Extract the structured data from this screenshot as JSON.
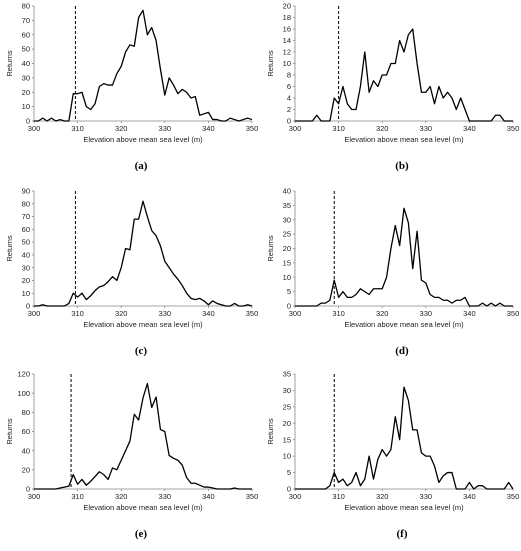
{
  "chart_data": [
    {
      "type": "line",
      "caption": "(a)",
      "xlabel": "Elevation above mean sea level (m)",
      "ylabel": "Returns",
      "xlim": [
        300,
        350
      ],
      "ylim": [
        0,
        80
      ],
      "xticks": [
        300,
        310,
        320,
        330,
        340,
        350
      ],
      "yticks": [
        0,
        10,
        20,
        30,
        40,
        50,
        60,
        70,
        80
      ],
      "reference_line_x": 309.5,
      "grid": false,
      "x": [
        300,
        301,
        302,
        303,
        304,
        305,
        306,
        307,
        308,
        309,
        310,
        311,
        312,
        313,
        314,
        315,
        316,
        317,
        318,
        319,
        320,
        321,
        322,
        323,
        324,
        325,
        326,
        327,
        328,
        329,
        330,
        331,
        332,
        333,
        334,
        335,
        336,
        337,
        338,
        339,
        340,
        341,
        342,
        343,
        344,
        345,
        346,
        347,
        348,
        349,
        350
      ],
      "values": [
        0,
        0,
        2,
        0,
        2,
        0,
        1,
        0,
        0,
        19,
        19,
        20,
        10,
        8,
        12,
        24,
        26,
        25,
        25,
        33,
        38,
        48,
        53,
        52,
        72,
        77,
        60,
        65,
        56,
        36,
        18,
        30,
        25,
        19,
        22,
        20,
        16,
        17,
        4,
        5,
        6,
        1,
        1,
        0,
        0,
        2,
        1,
        0,
        1,
        2,
        1
      ]
    },
    {
      "type": "line",
      "caption": "(b)",
      "xlabel": "Elevation above mean sea level (m)",
      "ylabel": "Returns",
      "xlim": [
        300,
        350
      ],
      "ylim": [
        0,
        20
      ],
      "xticks": [
        300,
        310,
        320,
        330,
        340,
        350
      ],
      "yticks": [
        0,
        2,
        4,
        6,
        8,
        10,
        12,
        14,
        16,
        18,
        20
      ],
      "reference_line_x": 310,
      "grid": false,
      "x": [
        300,
        301,
        302,
        303,
        304,
        305,
        306,
        307,
        308,
        309,
        310,
        311,
        312,
        313,
        314,
        315,
        316,
        317,
        318,
        319,
        320,
        321,
        322,
        323,
        324,
        325,
        326,
        327,
        328,
        329,
        330,
        331,
        332,
        333,
        334,
        335,
        336,
        337,
        338,
        339,
        340,
        341,
        342,
        343,
        344,
        345,
        346,
        347,
        348,
        349,
        350
      ],
      "values": [
        0,
        0,
        0,
        0,
        0,
        1,
        0,
        0,
        0,
        4,
        3,
        6,
        3,
        2,
        2,
        6,
        12,
        5,
        7,
        6,
        8,
        8,
        10,
        10,
        14,
        12,
        15,
        16,
        10,
        5,
        5,
        6,
        3,
        6,
        4,
        5,
        4,
        2,
        4,
        2,
        0,
        0,
        0,
        0,
        0,
        0,
        1,
        1,
        0,
        0,
        0
      ]
    },
    {
      "type": "line",
      "caption": "(c)",
      "xlabel": "Elevation above mean sea level (m)",
      "ylabel": "Returns",
      "xlim": [
        300,
        350
      ],
      "ylim": [
        0,
        90
      ],
      "xticks": [
        300,
        310,
        320,
        330,
        340,
        350
      ],
      "yticks": [
        0,
        10,
        20,
        30,
        40,
        50,
        60,
        70,
        80,
        90
      ],
      "reference_line_x": 309.5,
      "grid": false,
      "x": [
        300,
        301,
        302,
        303,
        304,
        305,
        306,
        307,
        308,
        309,
        310,
        311,
        312,
        313,
        314,
        315,
        316,
        317,
        318,
        319,
        320,
        321,
        322,
        323,
        324,
        325,
        326,
        327,
        328,
        329,
        330,
        331,
        332,
        333,
        334,
        335,
        336,
        337,
        338,
        339,
        340,
        341,
        342,
        343,
        344,
        345,
        346,
        347,
        348,
        349,
        350
      ],
      "values": [
        0,
        0,
        1,
        0,
        0,
        0,
        0,
        0,
        2,
        10,
        7,
        10,
        5,
        8,
        12,
        15,
        16,
        19,
        23,
        20,
        30,
        45,
        44,
        68,
        68,
        82,
        70,
        59,
        55,
        47,
        35,
        30,
        25,
        21,
        16,
        10,
        6,
        5,
        6,
        4,
        1,
        4,
        2,
        1,
        0,
        0,
        2,
        0,
        0,
        1,
        0
      ]
    },
    {
      "type": "line",
      "caption": "(d)",
      "xlabel": "Elevation above mean sea level (m)",
      "ylabel": "Returns",
      "xlim": [
        300,
        350
      ],
      "ylim": [
        0,
        40
      ],
      "xticks": [
        300,
        310,
        320,
        330,
        340,
        350
      ],
      "yticks": [
        0,
        5,
        10,
        15,
        20,
        25,
        30,
        35,
        40
      ],
      "reference_line_x": 309,
      "grid": false,
      "x": [
        300,
        301,
        302,
        303,
        304,
        305,
        306,
        307,
        308,
        309,
        310,
        311,
        312,
        313,
        314,
        315,
        316,
        317,
        318,
        319,
        320,
        321,
        322,
        323,
        324,
        325,
        326,
        327,
        328,
        329,
        330,
        331,
        332,
        333,
        334,
        335,
        336,
        337,
        338,
        339,
        340,
        341,
        342,
        343,
        344,
        345,
        346,
        347,
        348,
        349,
        350
      ],
      "values": [
        0,
        0,
        0,
        0,
        0,
        0,
        1,
        1,
        2,
        9,
        3,
        5,
        3,
        3,
        4,
        6,
        5,
        4,
        6,
        6,
        6,
        10,
        20,
        28,
        21,
        34,
        29,
        13,
        26,
        9,
        8,
        4,
        3,
        3,
        2,
        2,
        1,
        2,
        2,
        3,
        0,
        0,
        0,
        1,
        0,
        1,
        0,
        1,
        0,
        0,
        0
      ]
    },
    {
      "type": "line",
      "caption": "(e)",
      "xlabel": "Elevation above mean sea level (m)",
      "ylabel": "Returns",
      "xlim": [
        300,
        350
      ],
      "ylim": [
        0,
        120
      ],
      "xticks": [
        300,
        310,
        320,
        330,
        340,
        350
      ],
      "yticks": [
        0,
        20,
        40,
        60,
        80,
        100,
        120
      ],
      "reference_line_x": 308.5,
      "grid": false,
      "x": [
        300,
        301,
        302,
        303,
        304,
        305,
        306,
        307,
        308,
        309,
        310,
        311,
        312,
        313,
        314,
        315,
        316,
        317,
        318,
        319,
        320,
        321,
        322,
        323,
        324,
        325,
        326,
        327,
        328,
        329,
        330,
        331,
        332,
        333,
        334,
        335,
        336,
        337,
        338,
        339,
        340,
        341,
        342,
        343,
        344,
        345,
        346,
        347,
        348,
        349,
        350
      ],
      "values": [
        0,
        0,
        0,
        0,
        0,
        0,
        1,
        2,
        3,
        15,
        5,
        10,
        4,
        8,
        13,
        18,
        15,
        10,
        22,
        20,
        30,
        40,
        50,
        78,
        72,
        95,
        110,
        85,
        96,
        62,
        60,
        35,
        32,
        30,
        25,
        12,
        6,
        6,
        4,
        2,
        2,
        1,
        0,
        0,
        0,
        0,
        1,
        0,
        0,
        0,
        0
      ]
    },
    {
      "type": "line",
      "caption": "(f)",
      "xlabel": "Elevation above mean sea level (m)",
      "ylabel": "Returns",
      "xlim": [
        300,
        350
      ],
      "ylim": [
        0,
        35
      ],
      "xticks": [
        300,
        310,
        320,
        330,
        340,
        350
      ],
      "yticks": [
        0,
        5,
        10,
        15,
        20,
        25,
        30,
        35
      ],
      "reference_line_x": 309,
      "grid": false,
      "x": [
        300,
        301,
        302,
        303,
        304,
        305,
        306,
        307,
        308,
        309,
        310,
        311,
        312,
        313,
        314,
        315,
        316,
        317,
        318,
        319,
        320,
        321,
        322,
        323,
        324,
        325,
        326,
        327,
        328,
        329,
        330,
        331,
        332,
        333,
        334,
        335,
        336,
        337,
        338,
        339,
        340,
        341,
        342,
        343,
        344,
        345,
        346,
        347,
        348,
        349,
        350
      ],
      "values": [
        0,
        0,
        0,
        0,
        0,
        0,
        0,
        0,
        1,
        5,
        2,
        3,
        1,
        2,
        5,
        1,
        3,
        10,
        3,
        9,
        12,
        10,
        12,
        22,
        15,
        31,
        27,
        18,
        18,
        11,
        10,
        10,
        7,
        2,
        4,
        5,
        5,
        0,
        0,
        0,
        2,
        0,
        1,
        1,
        0,
        0,
        0,
        0,
        0,
        2,
        0
      ]
    }
  ]
}
